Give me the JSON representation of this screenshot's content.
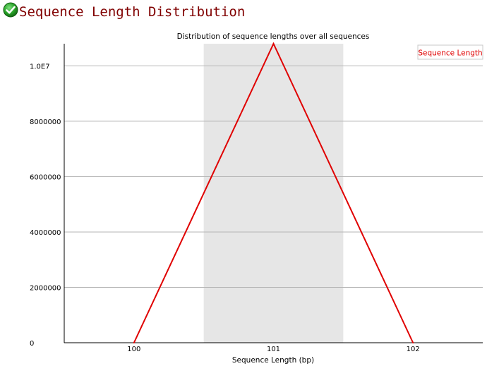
{
  "page": {
    "title": "Sequence Length Distribution",
    "status": "pass"
  },
  "icons": {
    "status_icon": "check-circle-icon"
  },
  "colors": {
    "title": "#800000",
    "series": "#e00000",
    "band": "#e6e6e6",
    "grid": "#b5b5b5",
    "icon": "#1f8a1f"
  },
  "chart_data": {
    "type": "line",
    "title": "Distribution of sequence lengths over all sequences",
    "xlabel": "Sequence Length (bp)",
    "ylabel": "",
    "categories": [
      "100",
      "101",
      "102"
    ],
    "series": [
      {
        "name": "Sequence Length",
        "values": [
          0,
          10800000,
          0
        ]
      }
    ],
    "yticks": [
      "0",
      "2000000",
      "4000000",
      "6000000",
      "8000000",
      "1.0E7"
    ],
    "ytick_values": [
      0,
      2000000,
      4000000,
      6000000,
      8000000,
      10000000
    ],
    "ylim": [
      0,
      10800000
    ],
    "highlight_band_category": "101",
    "grid": true,
    "legend_position": "top-right"
  }
}
